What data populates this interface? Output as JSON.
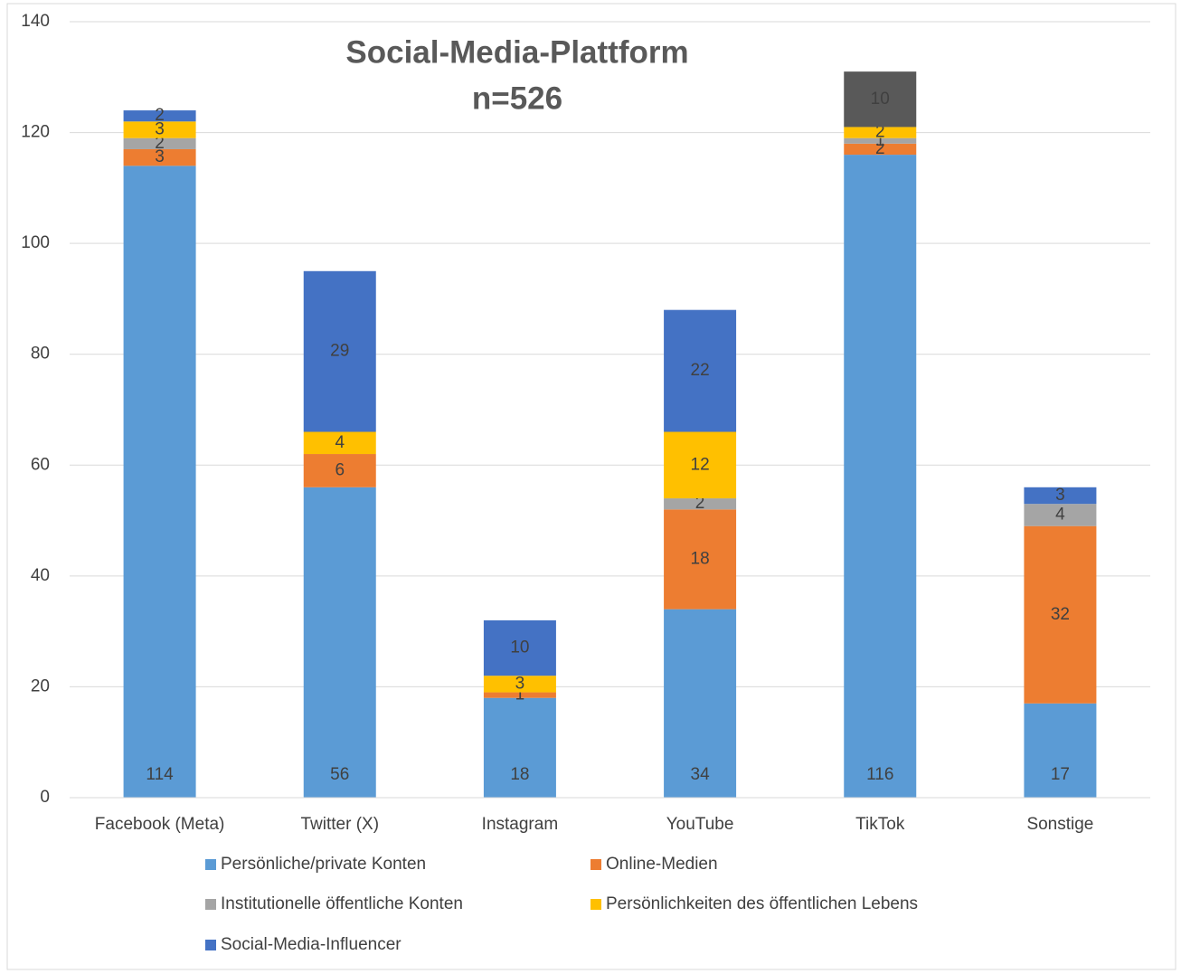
{
  "chart_data": {
    "type": "stacked_bar",
    "title": "Social-Media-Plattform",
    "subtitle": "n=526",
    "categories": [
      "Facebook (Meta)",
      "Twitter (X)",
      "Instagram",
      "YouTube",
      "TikTok",
      "Sonstige"
    ],
    "series": [
      {
        "name": "Persönliche/private Konten",
        "color": "#5b9bd5",
        "values": [
          114,
          56,
          18,
          34,
          116,
          17
        ]
      },
      {
        "name": "Online-Medien",
        "color": "#ed7d31",
        "values": [
          3,
          6,
          1,
          18,
          2,
          32
        ]
      },
      {
        "name": "Institutionelle öffentliche Konten",
        "color": "#a5a5a5",
        "values": [
          2,
          null,
          null,
          2,
          1,
          4
        ]
      },
      {
        "name": "Persönlichkeiten des öffentlichen Lebens",
        "color": "#ffc000",
        "values": [
          3,
          4,
          3,
          12,
          2,
          null
        ]
      },
      {
        "name": "Social-Media-Influencer",
        "color": "#4472c4",
        "colors": [
          "#4472c4",
          "#4472c4",
          "#4472c4",
          "#4472c4",
          "#595959",
          "#4472c4"
        ],
        "values": [
          2,
          29,
          10,
          22,
          10,
          3
        ]
      }
    ],
    "ylim": [
      0,
      140
    ],
    "yticks": [
      0,
      20,
      40,
      60,
      80,
      100,
      120,
      140
    ],
    "grid": true,
    "legend": "bottom"
  }
}
